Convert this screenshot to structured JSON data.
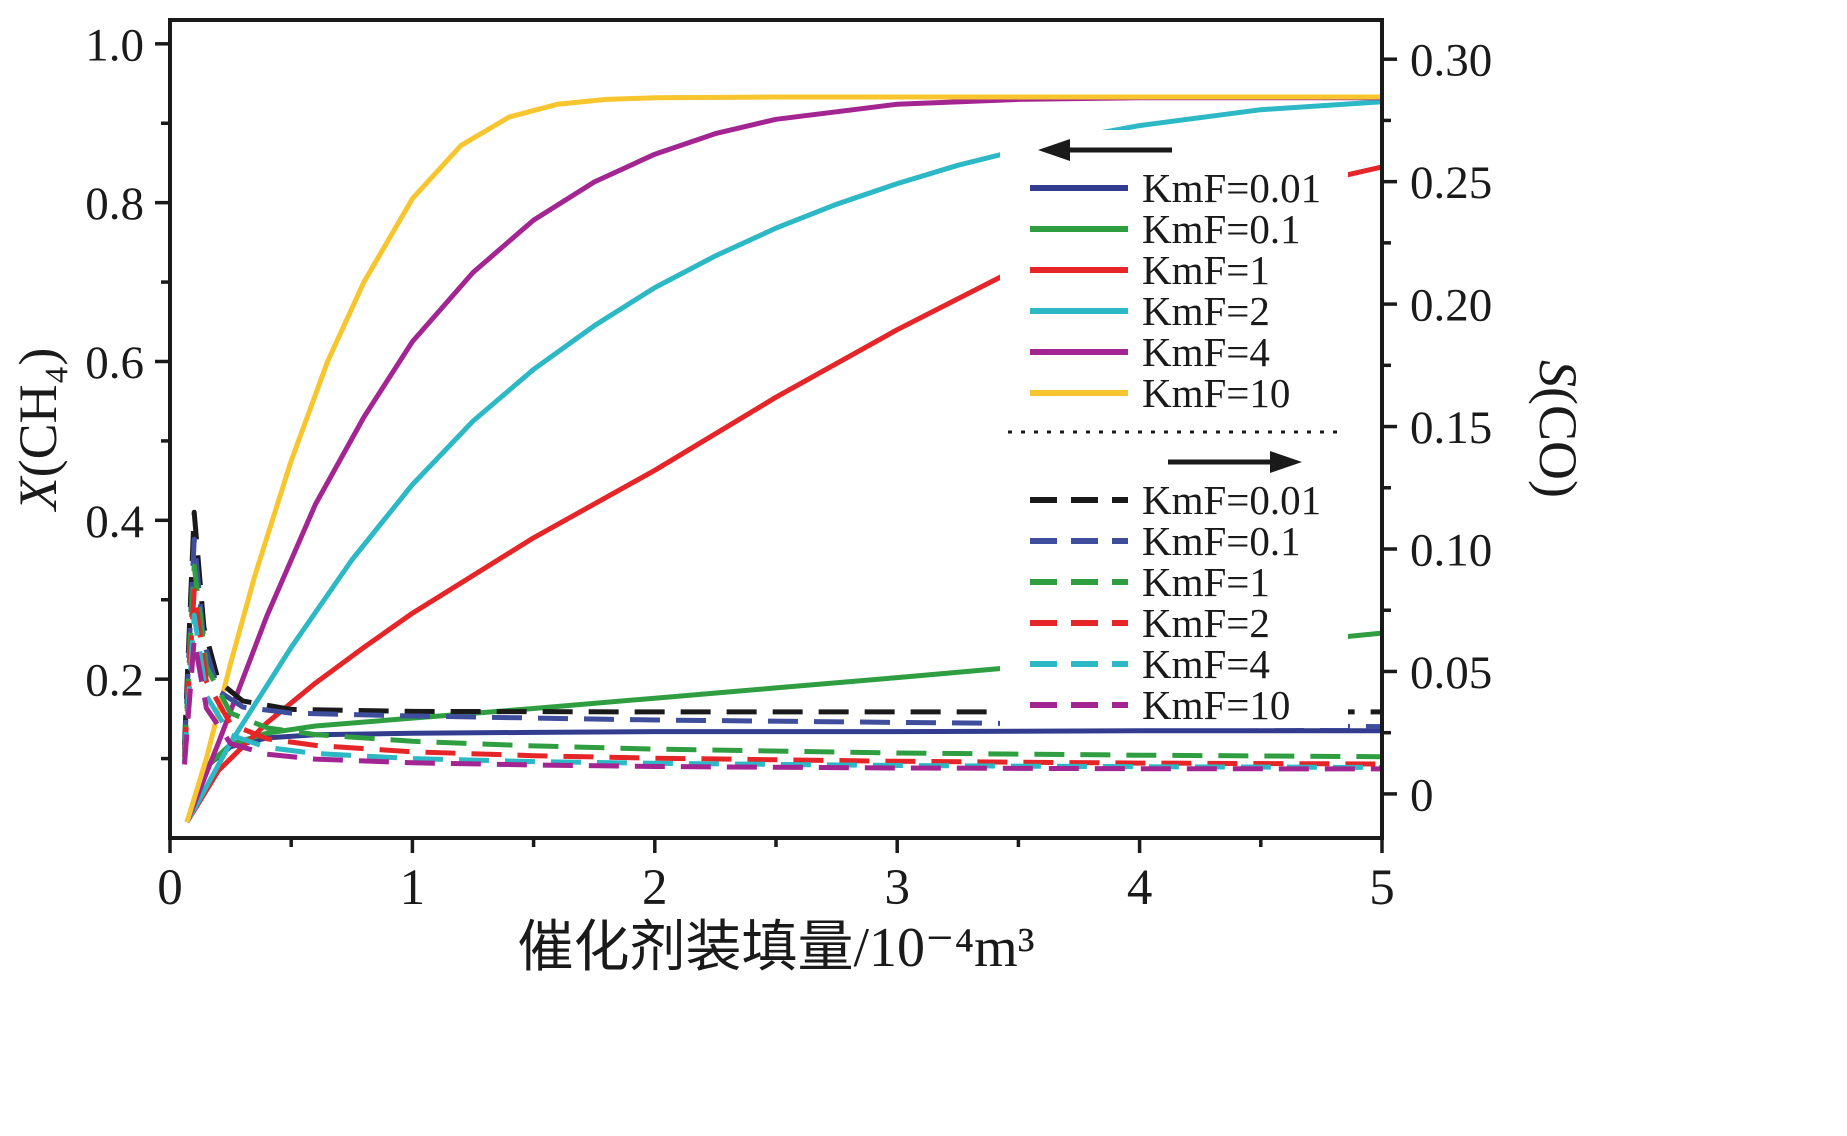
{
  "figure": {
    "background": "#ffffff",
    "ink_color": "#1a1a1a"
  },
  "chart_data": {
    "type": "line",
    "title": "",
    "xlabel": "催化剂装填量/10⁻⁴m³",
    "ylabel_left": "X(CH₄)",
    "ylabel_right": "S(CO)",
    "xlim": [
      0,
      5
    ],
    "x_ticks": [
      0,
      1,
      2,
      3,
      4,
      5
    ],
    "x_tick_labels": [
      "0",
      "1",
      "2",
      "3",
      "4",
      "5"
    ],
    "x_minor_step": 0.5,
    "grid": "off",
    "left_axis": {
      "min": 0,
      "max": 1.03,
      "ticks": [
        0.2,
        0.4,
        0.6,
        0.8,
        1.0
      ],
      "tick_labels": [
        "0.2",
        "0.4",
        "0.6",
        "0.8",
        "1.0"
      ],
      "minor_step": 0.1
    },
    "right_axis": {
      "min": -0.018,
      "max": 0.316,
      "ticks": [
        0,
        0.05,
        0.1,
        0.15,
        0.2,
        0.25,
        0.3
      ],
      "tick_labels": [
        "0",
        "0.05",
        "0.10",
        "0.15",
        "0.20",
        "0.25",
        "0.30"
      ],
      "minor_step": 0.025
    },
    "solid_series": [
      {
        "label": "KmF=0.01",
        "color": "#313c8f",
        "x": [
          0.07,
          0.15,
          0.25,
          0.4,
          0.6,
          1.0,
          1.5,
          2.0,
          3.0,
          4.0,
          5.0
        ],
        "y": [
          0.02,
          0.09,
          0.115,
          0.126,
          0.13,
          0.132,
          0.133,
          0.134,
          0.134,
          0.135,
          0.135
        ]
      },
      {
        "label": "KmF=0.1",
        "color": "#2f9e41",
        "x": [
          0.07,
          0.15,
          0.25,
          0.4,
          0.6,
          1.0,
          1.5,
          2.0,
          2.5,
          3.0,
          3.45,
          4.0,
          4.5,
          5.0
        ],
        "y": [
          0.02,
          0.09,
          0.118,
          0.132,
          0.141,
          0.151,
          0.163,
          0.176,
          0.189,
          0.202,
          0.214,
          0.229,
          0.243,
          0.258
        ]
      },
      {
        "label": "KmF=1",
        "color": "#e52528",
        "x": [
          0.07,
          0.2,
          0.4,
          0.6,
          0.8,
          1.0,
          1.5,
          2.0,
          2.5,
          3.0,
          3.45,
          4.0,
          4.5,
          5.0
        ],
        "y": [
          0.02,
          0.085,
          0.145,
          0.195,
          0.24,
          0.283,
          0.378,
          0.463,
          0.555,
          0.64,
          0.71,
          0.77,
          0.81,
          0.845
        ]
      },
      {
        "label": "KmF=2",
        "color": "#2cb8c4",
        "x": [
          0.07,
          0.25,
          0.5,
          0.75,
          1.0,
          1.25,
          1.5,
          1.75,
          2.0,
          2.25,
          2.5,
          2.75,
          3.0,
          3.25,
          3.5,
          3.75,
          4.0,
          4.5,
          5.0
        ],
        "y": [
          0.02,
          0.12,
          0.24,
          0.35,
          0.445,
          0.525,
          0.59,
          0.645,
          0.693,
          0.733,
          0.768,
          0.798,
          0.824,
          0.847,
          0.866,
          0.883,
          0.897,
          0.917,
          0.927
        ]
      },
      {
        "label": "KmF=4",
        "color": "#a32592",
        "x": [
          0.07,
          0.2,
          0.4,
          0.6,
          0.8,
          1.0,
          1.25,
          1.5,
          1.75,
          2.0,
          2.25,
          2.5,
          3.0,
          3.5,
          4.0,
          4.5,
          5.0
        ],
        "y": [
          0.02,
          0.12,
          0.28,
          0.42,
          0.53,
          0.625,
          0.712,
          0.778,
          0.826,
          0.861,
          0.887,
          0.905,
          0.924,
          0.93,
          0.932,
          0.932,
          0.932
        ]
      },
      {
        "label": "KmF=10",
        "color": "#f7c52d",
        "x": [
          0.07,
          0.15,
          0.25,
          0.35,
          0.5,
          0.65,
          0.8,
          1.0,
          1.2,
          1.4,
          1.6,
          1.8,
          2.0,
          2.5,
          3.0,
          4.0,
          5.0
        ],
        "y": [
          0.02,
          0.1,
          0.22,
          0.33,
          0.475,
          0.6,
          0.7,
          0.805,
          0.872,
          0.908,
          0.924,
          0.93,
          0.932,
          0.933,
          0.933,
          0.933,
          0.933
        ]
      }
    ],
    "dashed_series": [
      {
        "label": "KmF=0.01",
        "color": "#1a1a1a",
        "x": [
          0.06,
          0.1,
          0.14,
          0.2,
          0.3,
          0.5,
          1.0,
          2.0,
          3.0,
          4.0,
          5.0
        ],
        "y": [
          0.02,
          0.115,
          0.068,
          0.046,
          0.038,
          0.0345,
          0.0337,
          0.0335,
          0.0335,
          0.0335,
          0.0335
        ]
      },
      {
        "label": "KmF=0.1",
        "color": "#3f4e9c",
        "x": [
          0.06,
          0.1,
          0.14,
          0.2,
          0.3,
          0.5,
          1.0,
          2.0,
          3.0,
          4.0,
          5.0
        ],
        "y": [
          0.018,
          0.104,
          0.062,
          0.042,
          0.0355,
          0.033,
          0.0318,
          0.0302,
          0.0292,
          0.0283,
          0.0275
        ]
      },
      {
        "label": "KmF=1",
        "color": "#2f9e41",
        "x": [
          0.06,
          0.1,
          0.15,
          0.25,
          0.4,
          0.6,
          1.0,
          1.5,
          2.0,
          3.0,
          4.0,
          5.0
        ],
        "y": [
          0.016,
          0.093,
          0.052,
          0.033,
          0.027,
          0.0242,
          0.0215,
          0.0196,
          0.0183,
          0.0167,
          0.0158,
          0.0152
        ]
      },
      {
        "label": "KmF=2",
        "color": "#e52528",
        "x": [
          0.06,
          0.1,
          0.15,
          0.25,
          0.4,
          0.6,
          1.0,
          1.5,
          2.0,
          3.0,
          4.0,
          5.0
        ],
        "y": [
          0.015,
          0.083,
          0.046,
          0.0285,
          0.0225,
          0.0198,
          0.0172,
          0.0156,
          0.0146,
          0.0133,
          0.0126,
          0.0122
        ]
      },
      {
        "label": "KmF=4",
        "color": "#2cb8c4",
        "x": [
          0.06,
          0.1,
          0.15,
          0.25,
          0.4,
          0.6,
          1.0,
          1.5,
          2.0,
          3.0,
          4.0,
          5.0
        ],
        "y": [
          0.013,
          0.073,
          0.04,
          0.024,
          0.019,
          0.0165,
          0.0144,
          0.0132,
          0.0125,
          0.0116,
          0.0111,
          0.0108
        ]
      },
      {
        "label": "KmF=10",
        "color": "#a32592",
        "x": [
          0.06,
          0.1,
          0.15,
          0.25,
          0.4,
          0.6,
          1.0,
          1.5,
          2.0,
          3.0,
          4.0,
          5.0
        ],
        "y": [
          0.012,
          0.063,
          0.035,
          0.0205,
          0.0162,
          0.0142,
          0.0127,
          0.0118,
          0.0112,
          0.0106,
          0.0103,
          0.0102
        ]
      }
    ],
    "legend": {
      "solid_group_arrow": "left",
      "dashed_group_arrow": "right",
      "solid_items": [
        "KmF=0.01",
        "KmF=0.1",
        "KmF=1",
        "KmF=2",
        "KmF=4",
        "KmF=10"
      ],
      "dashed_items": [
        "KmF=0.01",
        "KmF=0.1",
        "KmF=1",
        "KmF=2",
        "KmF=4",
        "KmF=10"
      ]
    }
  }
}
